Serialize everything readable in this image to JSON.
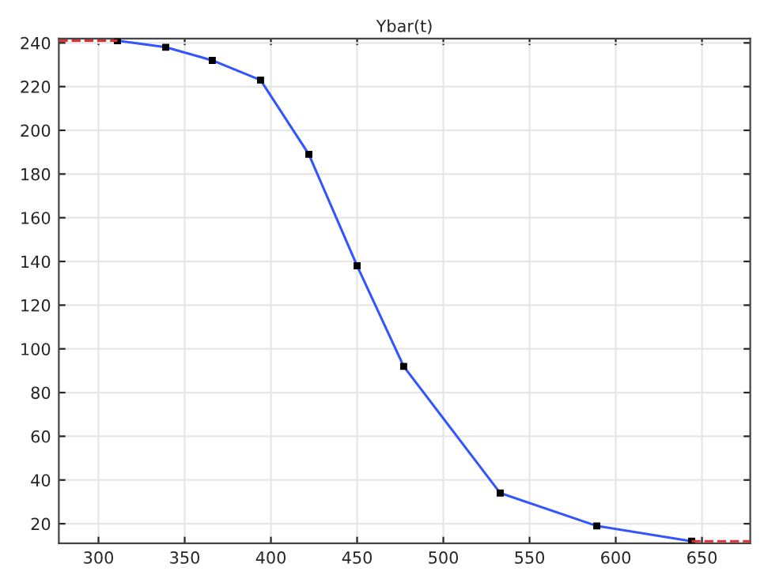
{
  "chart_data": {
    "type": "line",
    "title": "Ybar(t)",
    "x": [
      311,
      339,
      366,
      394,
      422,
      450,
      477,
      533,
      589,
      644
    ],
    "series": [
      {
        "color": "#3355ff",
        "values": [
          241,
          238,
          232,
          223,
          189,
          138,
          92,
          34,
          19,
          12
        ],
        "marker": "square",
        "line_style": "solid"
      },
      {
        "color": "#dd3333",
        "x": [
          277,
          311
        ],
        "values": [
          241,
          241
        ],
        "marker": "none",
        "line_style": "dashed"
      },
      {
        "color": "#dd3333",
        "x": [
          644,
          678
        ],
        "values": [
          12,
          12
        ],
        "marker": "none",
        "line_style": "dashed"
      }
    ],
    "xlim": [
      277,
      678
    ],
    "ylim": [
      11,
      242
    ],
    "xticks": [
      300,
      350,
      400,
      450,
      500,
      550,
      600,
      650
    ],
    "yticks": [
      20,
      40,
      60,
      80,
      100,
      120,
      140,
      160,
      180,
      200,
      220,
      240
    ],
    "grid": true
  }
}
